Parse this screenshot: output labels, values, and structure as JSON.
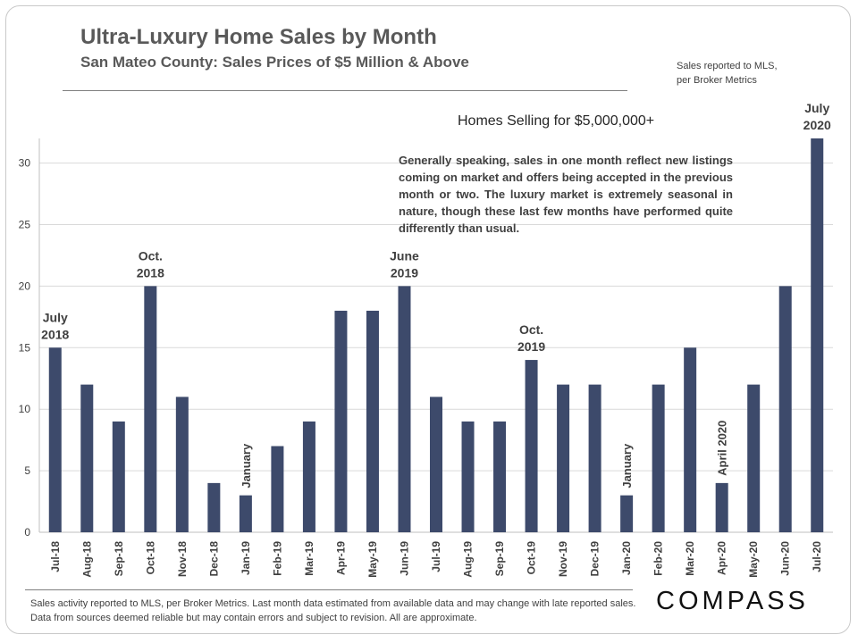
{
  "header": {
    "title": "Ultra-Luxury Home Sales by Month",
    "subtitle": "San Mateo County: Sales Prices of $5 Million & Above",
    "source_line1": "Sales reported to MLS,",
    "source_line2": "per Broker Metrics"
  },
  "note": "Generally speaking, sales in one month reflect new listings coming on market and offers being accepted in the previous month or two. The luxury market is extremely seasonal in nature, though these last few months have performed quite differently than usual.",
  "footer": {
    "text": "Sales activity reported to MLS, per Broker Metrics. Last month data estimated from available data and may change with late reported sales. Data from sources deemed reliable but may contain errors and subject to revision. All are approximate.",
    "logo": "COMPASS"
  },
  "chart_data": {
    "type": "bar",
    "title": "Homes Selling for $5,000,000+",
    "xlabel": "",
    "ylabel": "",
    "ylim": [
      0,
      32
    ],
    "yticks": [
      0,
      5,
      10,
      15,
      20,
      25,
      30
    ],
    "grid": true,
    "bar_color": "#3d4a6b",
    "categories": [
      "Jul-18",
      "Aug-18",
      "Sep-18",
      "Oct-18",
      "Nov-18",
      "Dec-18",
      "Jan-19",
      "Feb-19",
      "Mar-19",
      "Apr-19",
      "May-19",
      "Jun-19",
      "Jul-19",
      "Aug-19",
      "Sep-19",
      "Oct-19",
      "Nov-19",
      "Dec-19",
      "Jan-20",
      "Feb-20",
      "Mar-20",
      "Apr-20",
      "May-20",
      "Jun-20",
      "Jul-20"
    ],
    "values": [
      15,
      12,
      9,
      20,
      11,
      4,
      3,
      7,
      9,
      18,
      18,
      20,
      11,
      9,
      9,
      14,
      12,
      12,
      3,
      12,
      15,
      4,
      12,
      20,
      32
    ],
    "annotations": [
      {
        "index": 0,
        "lines": [
          "July",
          "2018"
        ],
        "rotated": false
      },
      {
        "index": 3,
        "lines": [
          "Oct.",
          "2018"
        ],
        "rotated": false
      },
      {
        "index": 6,
        "lines": [
          "January"
        ],
        "rotated": true
      },
      {
        "index": 11,
        "lines": [
          "June",
          "2019"
        ],
        "rotated": false
      },
      {
        "index": 15,
        "lines": [
          "Oct.",
          "2019"
        ],
        "rotated": false
      },
      {
        "index": 18,
        "lines": [
          "January"
        ],
        "rotated": true
      },
      {
        "index": 21,
        "lines": [
          "April 2020"
        ],
        "rotated": true
      },
      {
        "index": 24,
        "lines": [
          "July",
          "2020"
        ],
        "rotated": false
      }
    ]
  }
}
